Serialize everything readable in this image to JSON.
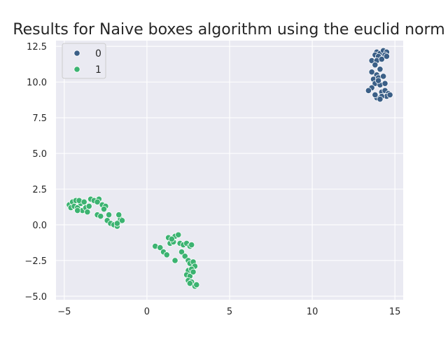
{
  "chart_data": {
    "type": "scatter",
    "title": "Results for Naive boxes algorithm using the euclid norm",
    "xlabel": "",
    "ylabel": "",
    "xlim": [
      -5.5,
      15.5
    ],
    "ylim": [
      -5.25,
      12.9
    ],
    "xticks": [
      -5,
      0,
      5,
      10,
      15
    ],
    "yticks": [
      -5.0,
      -2.5,
      0.0,
      2.5,
      5.0,
      7.5,
      10.0,
      12.5
    ],
    "xtick_labels": [
      "−5",
      "0",
      "5",
      "10",
      "15"
    ],
    "ytick_labels": [
      "−5.0",
      "−2.5",
      "0.0",
      "2.5",
      "5.0",
      "7.5",
      "10.0",
      "12.5"
    ],
    "grid": true,
    "legend": {
      "placement": "top-left",
      "title": ""
    },
    "series": [
      {
        "name": "0",
        "color": "#3b5f87",
        "points": [
          [
            13.9,
            12.1
          ],
          [
            14.1,
            12.0
          ],
          [
            14.3,
            12.2
          ],
          [
            14.5,
            12.1
          ],
          [
            13.8,
            11.9
          ],
          [
            14.0,
            11.8
          ],
          [
            14.4,
            11.9
          ],
          [
            13.6,
            11.5
          ],
          [
            13.9,
            11.5
          ],
          [
            14.2,
            11.6
          ],
          [
            14.5,
            11.8
          ],
          [
            13.8,
            11.2
          ],
          [
            14.1,
            10.9
          ],
          [
            13.6,
            10.7
          ],
          [
            13.9,
            10.5
          ],
          [
            13.7,
            10.2
          ],
          [
            14.0,
            10.3
          ],
          [
            14.3,
            10.4
          ],
          [
            13.8,
            9.9
          ],
          [
            14.1,
            9.8
          ],
          [
            14.4,
            9.9
          ],
          [
            14.0,
            10.1
          ],
          [
            13.6,
            9.6
          ],
          [
            13.4,
            9.4
          ],
          [
            14.2,
            9.3
          ],
          [
            14.4,
            9.4
          ],
          [
            14.6,
            9.2
          ],
          [
            14.5,
            9.0
          ],
          [
            14.2,
            9.0
          ],
          [
            13.9,
            8.9
          ],
          [
            14.1,
            8.8
          ],
          [
            13.8,
            9.1
          ],
          [
            14.7,
            9.1
          ]
        ]
      },
      {
        "name": "1",
        "color": "#3cb371",
        "points": [
          [
            -4.7,
            1.4
          ],
          [
            -4.5,
            1.6
          ],
          [
            -4.3,
            1.7
          ],
          [
            -4.6,
            1.2
          ],
          [
            -4.4,
            1.3
          ],
          [
            -4.2,
            1.2
          ],
          [
            -4.0,
            1.5
          ],
          [
            -4.1,
            1.7
          ],
          [
            -3.8,
            1.6
          ],
          [
            -3.9,
            1.0
          ],
          [
            -3.7,
            1.2
          ],
          [
            -3.5,
            1.3
          ],
          [
            -3.6,
            0.9
          ],
          [
            -4.2,
            1.0
          ],
          [
            -3.4,
            1.8
          ],
          [
            -3.2,
            1.7
          ],
          [
            -2.9,
            1.8
          ],
          [
            -3.0,
            1.6
          ],
          [
            -2.7,
            1.4
          ],
          [
            -2.5,
            1.3
          ],
          [
            -2.6,
            1.1
          ],
          [
            -3.0,
            0.7
          ],
          [
            -2.8,
            0.6
          ],
          [
            -2.3,
            0.7
          ],
          [
            -2.4,
            0.3
          ],
          [
            -2.2,
            0.1
          ],
          [
            -2.0,
            0.0
          ],
          [
            -1.8,
            -0.1
          ],
          [
            -1.7,
            0.2
          ],
          [
            -1.6,
            0.4
          ],
          [
            -1.7,
            0.7
          ],
          [
            -1.5,
            0.3
          ],
          [
            -1.8,
            0.1
          ],
          [
            0.5,
            -1.5
          ],
          [
            0.8,
            -1.6
          ],
          [
            1.0,
            -1.9
          ],
          [
            1.2,
            -2.1
          ],
          [
            1.3,
            -0.9
          ],
          [
            1.4,
            -1.3
          ],
          [
            1.6,
            -1.2
          ],
          [
            1.7,
            -0.8
          ],
          [
            1.5,
            -1.0
          ],
          [
            1.9,
            -0.7
          ],
          [
            2.0,
            -1.3
          ],
          [
            2.2,
            -1.4
          ],
          [
            2.4,
            -1.3
          ],
          [
            2.6,
            -1.5
          ],
          [
            2.7,
            -1.4
          ],
          [
            2.1,
            -1.9
          ],
          [
            2.3,
            -2.2
          ],
          [
            1.7,
            -2.5
          ],
          [
            2.5,
            -2.5
          ],
          [
            2.6,
            -2.7
          ],
          [
            2.8,
            -2.6
          ],
          [
            2.9,
            -2.9
          ],
          [
            2.5,
            -3.2
          ],
          [
            2.7,
            -3.1
          ],
          [
            2.4,
            -3.5
          ],
          [
            2.6,
            -3.6
          ],
          [
            2.8,
            -3.3
          ],
          [
            2.5,
            -3.9
          ],
          [
            2.7,
            -4.0
          ],
          [
            2.9,
            -4.3
          ],
          [
            3.0,
            -4.2
          ],
          [
            2.6,
            -4.1
          ]
        ]
      }
    ]
  }
}
